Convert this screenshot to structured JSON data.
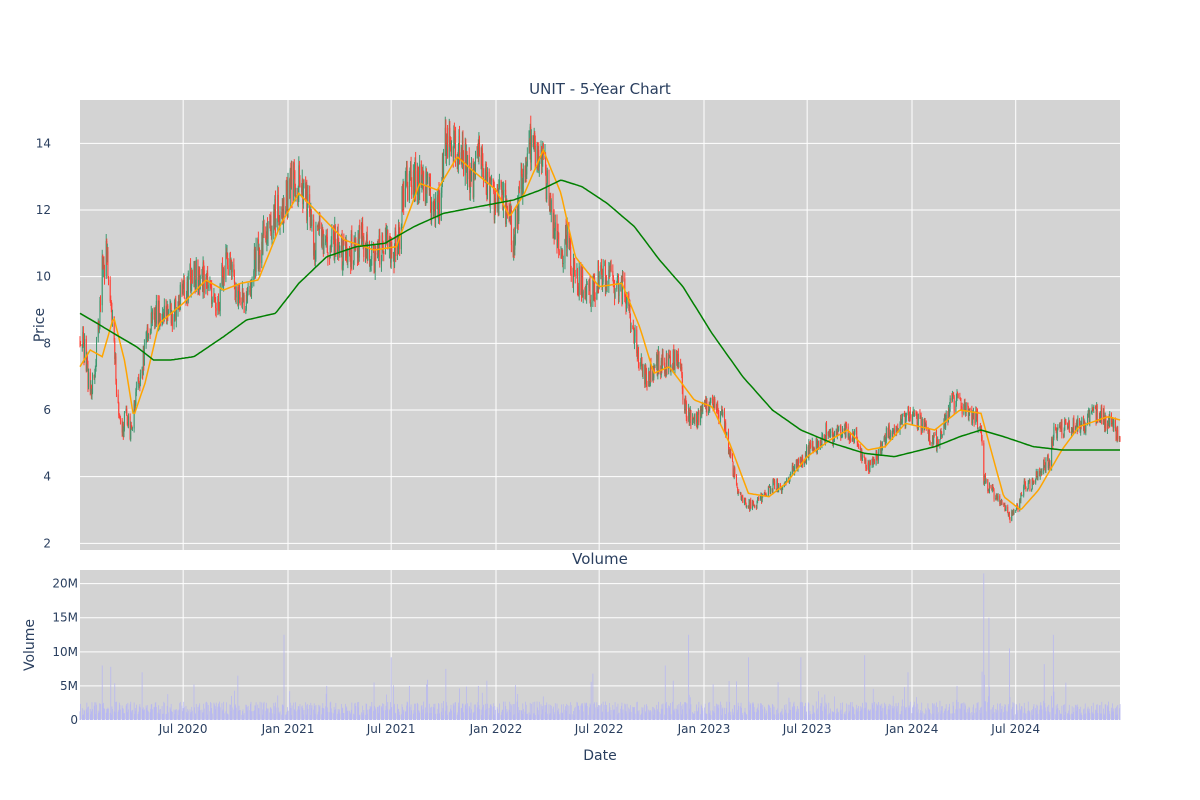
{
  "chart_data": [
    {
      "type": "candlestick",
      "title": "UNIT - 5-Year Chart",
      "ylabel": "Price",
      "ylim": [
        1.8,
        15.3
      ],
      "yticks": [
        2,
        4,
        6,
        8,
        10,
        12,
        14
      ],
      "xlim": [
        "2020-01-02",
        "2024-12-31"
      ],
      "grid": true,
      "colors": {
        "increasing": "#3d9970",
        "decreasing": "#ff4136",
        "ma_short": "#ffa500",
        "ma_long": "#008000",
        "plot_bg": "#d3d3d3"
      },
      "price_anchors": [
        [
          "2020-01-02",
          8.2
        ],
        [
          "2020-01-10",
          7.8
        ],
        [
          "2020-01-20",
          6.5
        ],
        [
          "2020-01-28",
          7.2
        ],
        [
          "2020-02-05",
          8.8
        ],
        [
          "2020-02-10",
          10.3
        ],
        [
          "2020-02-18",
          10.6
        ],
        [
          "2020-02-24",
          9.4
        ],
        [
          "2020-03-03",
          7.5
        ],
        [
          "2020-03-10",
          5.8
        ],
        [
          "2020-03-16",
          5.2
        ],
        [
          "2020-03-23",
          6.0
        ],
        [
          "2020-03-30",
          5.2
        ],
        [
          "2020-04-10",
          6.5
        ],
        [
          "2020-04-20",
          7.2
        ],
        [
          "2020-05-01",
          8.5
        ],
        [
          "2020-05-15",
          8.9
        ],
        [
          "2020-06-01",
          9.0
        ],
        [
          "2020-06-15",
          8.9
        ],
        [
          "2020-07-01",
          9.5
        ],
        [
          "2020-07-15",
          9.9
        ],
        [
          "2020-08-01",
          10.1
        ],
        [
          "2020-08-15",
          9.6
        ],
        [
          "2020-09-01",
          9.2
        ],
        [
          "2020-09-10",
          10.3
        ],
        [
          "2020-09-20",
          10.3
        ],
        [
          "2020-10-05",
          9.5
        ],
        [
          "2020-10-20",
          9.1
        ],
        [
          "2020-11-01",
          10.3
        ],
        [
          "2020-11-20",
          11.2
        ],
        [
          "2020-12-10",
          11.8
        ],
        [
          "2020-12-22",
          12.0
        ],
        [
          "2021-01-08",
          12.8
        ],
        [
          "2021-01-18",
          12.9
        ],
        [
          "2021-01-29",
          12.5
        ],
        [
          "2021-02-08",
          11.8
        ],
        [
          "2021-02-15",
          10.8
        ],
        [
          "2021-02-25",
          11.6
        ],
        [
          "2021-03-10",
          10.8
        ],
        [
          "2021-03-25",
          11.0
        ],
        [
          "2021-04-10",
          10.6
        ],
        [
          "2021-04-25",
          10.8
        ],
        [
          "2021-05-10",
          11.1
        ],
        [
          "2021-05-25",
          10.5
        ],
        [
          "2021-06-10",
          10.8
        ],
        [
          "2021-06-25",
          11.0
        ],
        [
          "2021-07-05",
          10.7
        ],
        [
          "2021-07-15",
          11.2
        ],
        [
          "2021-07-25",
          12.8
        ],
        [
          "2021-08-10",
          13.0
        ],
        [
          "2021-08-25",
          12.8
        ],
        [
          "2021-09-10",
          12.2
        ],
        [
          "2021-09-25",
          12.1
        ],
        [
          "2021-10-02",
          14.2
        ],
        [
          "2021-10-10",
          14.3
        ],
        [
          "2021-10-25",
          13.9
        ],
        [
          "2021-11-10",
          13.3
        ],
        [
          "2021-11-25",
          12.9
        ],
        [
          "2021-12-05",
          13.8
        ],
        [
          "2021-12-15",
          13.0
        ],
        [
          "2021-12-28",
          12.3
        ],
        [
          "2022-01-10",
          12.5
        ],
        [
          "2022-01-20",
          11.8
        ],
        [
          "2022-02-01",
          11.2
        ],
        [
          "2022-02-10",
          12.1
        ],
        [
          "2022-02-20",
          13.4
        ],
        [
          "2022-03-01",
          14.0
        ],
        [
          "2022-03-10",
          13.9
        ],
        [
          "2022-03-25",
          13.3
        ],
        [
          "2022-04-05",
          12.5
        ],
        [
          "2022-04-15",
          11.5
        ],
        [
          "2022-04-22",
          10.5
        ],
        [
          "2022-05-05",
          11.3
        ],
        [
          "2022-05-15",
          10.2
        ],
        [
          "2022-06-01",
          9.8
        ],
        [
          "2022-06-15",
          9.4
        ],
        [
          "2022-07-01",
          9.9
        ],
        [
          "2022-07-15",
          10.0
        ],
        [
          "2022-08-01",
          9.7
        ],
        [
          "2022-08-15",
          9.5
        ],
        [
          "2022-08-28",
          8.6
        ],
        [
          "2022-09-10",
          7.3
        ],
        [
          "2022-09-25",
          7.0
        ],
        [
          "2022-10-10",
          7.4
        ],
        [
          "2022-10-25",
          7.3
        ],
        [
          "2022-11-10",
          7.6
        ],
        [
          "2022-11-20",
          7.2
        ],
        [
          "2022-12-01",
          5.9
        ],
        [
          "2022-12-15",
          5.6
        ],
        [
          "2023-01-01",
          6.0
        ],
        [
          "2023-01-15",
          6.4
        ],
        [
          "2023-01-25",
          6.1
        ],
        [
          "2023-02-05",
          5.6
        ],
        [
          "2023-02-20",
          4.3
        ],
        [
          "2023-03-01",
          3.6
        ],
        [
          "2023-03-15",
          3.2
        ],
        [
          "2023-04-01",
          3.1
        ],
        [
          "2023-04-20",
          3.6
        ],
        [
          "2023-05-05",
          3.8
        ],
        [
          "2023-05-20",
          3.6
        ],
        [
          "2023-06-05",
          4.2
        ],
        [
          "2023-06-20",
          4.5
        ],
        [
          "2023-07-05",
          4.8
        ],
        [
          "2023-07-20",
          5.0
        ],
        [
          "2023-08-05",
          5.4
        ],
        [
          "2023-08-15",
          5.1
        ],
        [
          "2023-08-25",
          5.5
        ],
        [
          "2023-09-10",
          5.4
        ],
        [
          "2023-09-25",
          5.2
        ],
        [
          "2023-10-05",
          4.6
        ],
        [
          "2023-10-20",
          4.3
        ],
        [
          "2023-11-01",
          4.6
        ],
        [
          "2023-11-15",
          5.2
        ],
        [
          "2023-12-01",
          5.5
        ],
        [
          "2023-12-15",
          5.7
        ],
        [
          "2024-01-01",
          5.8
        ],
        [
          "2024-01-15",
          5.6
        ],
        [
          "2024-02-01",
          5.2
        ],
        [
          "2024-02-15",
          5.0
        ],
        [
          "2024-02-28",
          5.6
        ],
        [
          "2024-03-10",
          6.3
        ],
        [
          "2024-03-20",
          6.2
        ],
        [
          "2024-04-05",
          6.0
        ],
        [
          "2024-04-20",
          5.8
        ],
        [
          "2024-05-01",
          5.5
        ],
        [
          "2024-05-06",
          3.9
        ],
        [
          "2024-05-20",
          3.6
        ],
        [
          "2024-06-05",
          3.2
        ],
        [
          "2024-06-20",
          2.8
        ],
        [
          "2024-07-01",
          2.9
        ],
        [
          "2024-07-15",
          3.7
        ],
        [
          "2024-08-01",
          3.8
        ],
        [
          "2024-08-15",
          4.3
        ],
        [
          "2024-08-30",
          4.5
        ],
        [
          "2024-09-05",
          5.3
        ],
        [
          "2024-09-20",
          5.4
        ],
        [
          "2024-10-10",
          5.6
        ],
        [
          "2024-10-25",
          5.5
        ],
        [
          "2024-11-10",
          5.8
        ],
        [
          "2024-11-25",
          5.9
        ],
        [
          "2024-12-10",
          5.6
        ],
        [
          "2024-12-31",
          5.3
        ]
      ],
      "ma_short_anchors": [
        [
          "2020-01-02",
          7.3
        ],
        [
          "2020-01-20",
          7.8
        ],
        [
          "2020-02-10",
          7.6
        ],
        [
          "2020-03-01",
          8.8
        ],
        [
          "2020-03-20",
          7.5
        ],
        [
          "2020-04-05",
          5.8
        ],
        [
          "2020-04-25",
          6.8
        ],
        [
          "2020-05-20",
          8.6
        ],
        [
          "2020-07-01",
          9.2
        ],
        [
          "2020-08-10",
          9.9
        ],
        [
          "2020-09-10",
          9.6
        ],
        [
          "2020-10-10",
          9.8
        ],
        [
          "2020-11-10",
          9.9
        ],
        [
          "2020-12-20",
          11.6
        ],
        [
          "2021-01-20",
          12.5
        ],
        [
          "2021-03-01",
          11.8
        ],
        [
          "2021-04-10",
          11.1
        ],
        [
          "2021-06-01",
          10.8
        ],
        [
          "2021-07-10",
          10.9
        ],
        [
          "2021-08-20",
          12.8
        ],
        [
          "2021-09-20",
          12.6
        ],
        [
          "2021-10-25",
          13.6
        ],
        [
          "2021-11-20",
          13.2
        ],
        [
          "2022-01-01",
          12.6
        ],
        [
          "2022-01-25",
          11.8
        ],
        [
          "2022-02-20",
          12.5
        ],
        [
          "2022-03-25",
          13.8
        ],
        [
          "2022-04-25",
          12.5
        ],
        [
          "2022-05-20",
          10.6
        ],
        [
          "2022-07-01",
          9.7
        ],
        [
          "2022-08-10",
          9.8
        ],
        [
          "2022-09-10",
          8.5
        ],
        [
          "2022-10-05",
          7.1
        ],
        [
          "2022-11-01",
          7.3
        ],
        [
          "2022-12-15",
          6.3
        ],
        [
          "2023-01-15",
          6.1
        ],
        [
          "2023-02-15",
          5.0
        ],
        [
          "2023-03-20",
          3.5
        ],
        [
          "2023-04-25",
          3.4
        ],
        [
          "2023-05-25",
          3.8
        ],
        [
          "2023-07-01",
          4.6
        ],
        [
          "2023-08-10",
          5.1
        ],
        [
          "2023-09-10",
          5.4
        ],
        [
          "2023-10-15",
          4.8
        ],
        [
          "2023-11-15",
          4.9
        ],
        [
          "2023-12-20",
          5.6
        ],
        [
          "2024-02-10",
          5.4
        ],
        [
          "2024-03-25",
          6.0
        ],
        [
          "2024-05-01",
          5.9
        ],
        [
          "2024-06-10",
          3.4
        ],
        [
          "2024-07-10",
          3.0
        ],
        [
          "2024-08-10",
          3.6
        ],
        [
          "2024-09-20",
          4.8
        ],
        [
          "2024-10-20",
          5.5
        ],
        [
          "2024-12-10",
          5.8
        ],
        [
          "2024-12-31",
          5.7
        ]
      ],
      "ma_long_anchors": [
        [
          "2020-01-02",
          8.9
        ],
        [
          "2020-02-01",
          8.6
        ],
        [
          "2020-03-01",
          8.3
        ],
        [
          "2020-04-10",
          7.9
        ],
        [
          "2020-05-10",
          7.5
        ],
        [
          "2020-06-10",
          7.5
        ],
        [
          "2020-07-20",
          7.6
        ],
        [
          "2020-09-10",
          8.2
        ],
        [
          "2020-10-20",
          8.7
        ],
        [
          "2020-12-10",
          8.9
        ],
        [
          "2021-01-20",
          9.8
        ],
        [
          "2021-03-10",
          10.6
        ],
        [
          "2021-05-01",
          10.9
        ],
        [
          "2021-06-20",
          11.0
        ],
        [
          "2021-08-10",
          11.5
        ],
        [
          "2021-10-01",
          11.9
        ],
        [
          "2021-12-01",
          12.1
        ],
        [
          "2022-02-01",
          12.3
        ],
        [
          "2022-03-20",
          12.6
        ],
        [
          "2022-04-25",
          12.9
        ],
        [
          "2022-06-01",
          12.7
        ],
        [
          "2022-07-15",
          12.2
        ],
        [
          "2022-09-01",
          11.5
        ],
        [
          "2022-10-15",
          10.5
        ],
        [
          "2022-11-25",
          9.7
        ],
        [
          "2023-01-15",
          8.3
        ],
        [
          "2023-03-10",
          7.0
        ],
        [
          "2023-05-01",
          6.0
        ],
        [
          "2023-06-20",
          5.4
        ],
        [
          "2023-08-15",
          5.0
        ],
        [
          "2023-10-10",
          4.7
        ],
        [
          "2023-12-01",
          4.6
        ],
        [
          "2024-02-10",
          4.9
        ],
        [
          "2024-03-25",
          5.2
        ],
        [
          "2024-05-01",
          5.4
        ],
        [
          "2024-06-10",
          5.2
        ],
        [
          "2024-08-01",
          4.9
        ],
        [
          "2024-09-20",
          4.8
        ],
        [
          "2024-11-15",
          4.8
        ],
        [
          "2024-12-31",
          4.8
        ]
      ]
    },
    {
      "type": "bar",
      "title": "Volume",
      "xlabel": "Date",
      "ylabel": "Volume",
      "ylim": [
        0,
        22000000
      ],
      "yticks": [
        0,
        5000000,
        10000000,
        15000000,
        20000000
      ],
      "ytick_labels": [
        "0",
        "5M",
        "10M",
        "15M",
        "20M"
      ],
      "xtick_dates": [
        "2020-07-01",
        "2021-01-01",
        "2021-07-01",
        "2022-01-01",
        "2022-07-01",
        "2023-01-01",
        "2023-07-01",
        "2024-01-01",
        "2024-07-01"
      ],
      "xtick_labels": [
        "Jul 2020",
        "Jan 2021",
        "Jul 2021",
        "Jan 2022",
        "Jul 2022",
        "Jan 2023",
        "Jul 2023",
        "Jan 2024",
        "Jul 2024"
      ],
      "color": "#b8b8f0",
      "base_volume": 2000000,
      "spikes": [
        [
          "2020-02-10",
          8000000
        ],
        [
          "2020-02-25",
          7800000
        ],
        [
          "2020-03-15",
          7500000
        ],
        [
          "2020-04-20",
          7000000
        ],
        [
          "2020-07-20",
          5200000
        ],
        [
          "2020-10-05",
          6500000
        ],
        [
          "2020-12-25",
          12500000
        ],
        [
          "2021-03-10",
          5000000
        ],
        [
          "2021-06-01",
          5500000
        ],
        [
          "2021-07-01",
          9200000
        ],
        [
          "2021-10-05",
          7500000
        ],
        [
          "2021-12-01",
          5000000
        ],
        [
          "2022-06-20",
          6800000
        ],
        [
          "2022-10-25",
          8000000
        ],
        [
          "2022-12-05",
          12500000
        ],
        [
          "2023-03-20",
          9200000
        ],
        [
          "2023-06-20",
          9200000
        ],
        [
          "2023-10-10",
          9500000
        ],
        [
          "2023-12-25",
          7000000
        ],
        [
          "2024-03-20",
          5000000
        ],
        [
          "2024-05-06",
          21500000
        ],
        [
          "2024-05-15",
          15000000
        ],
        [
          "2024-06-20",
          10500000
        ],
        [
          "2024-08-20",
          8200000
        ],
        [
          "2024-09-05",
          12500000
        ],
        [
          "2024-10-20",
          4500000
        ]
      ]
    }
  ]
}
